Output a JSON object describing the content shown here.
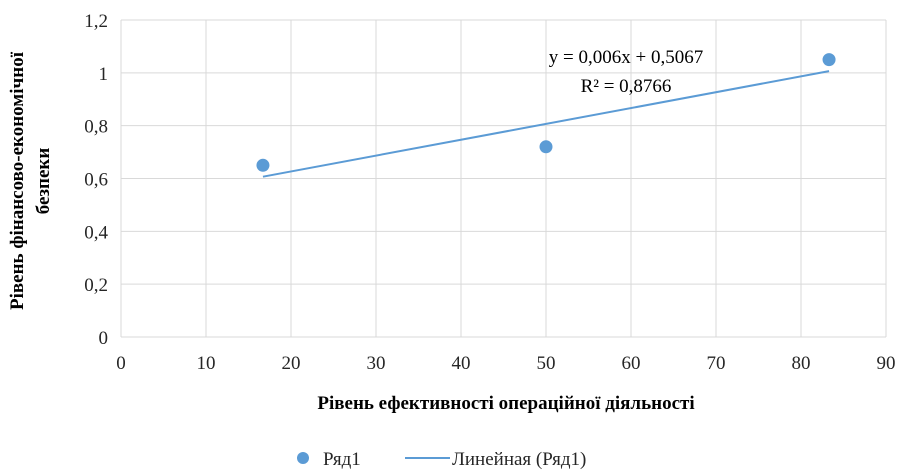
{
  "chart_data": {
    "type": "scatter",
    "xlabel": "Рівень ефективності операційної діяльності",
    "ylabel_line1": "Рівень фінансово-економічної",
    "ylabel_line2": "безпеки",
    "xlim": [
      0,
      90
    ],
    "ylim": [
      0,
      1.2
    ],
    "x_ticks": [
      0,
      10,
      20,
      30,
      40,
      50,
      60,
      70,
      80,
      90
    ],
    "y_ticks": [
      0,
      0.2,
      0.4,
      0.6,
      0.8,
      1,
      1.2
    ],
    "x_tick_labels": [
      "0",
      "10",
      "20",
      "30",
      "40",
      "50",
      "60",
      "70",
      "80",
      "90"
    ],
    "y_tick_labels": [
      "0",
      "0,2",
      "0,4",
      "0,6",
      "0,8",
      "1",
      "1,2"
    ],
    "grid": true,
    "series": [
      {
        "name": "Ряд1",
        "color": "#5B9BD5",
        "points": [
          {
            "x": 16.7,
            "y": 0.65
          },
          {
            "x": 50,
            "y": 0.72
          },
          {
            "x": 83.3,
            "y": 1.05
          }
        ]
      }
    ],
    "trendline": {
      "name": "Линейная (Ряд1)",
      "color": "#5B9BD5",
      "slope": 0.006,
      "intercept": 0.5067,
      "x_range": [
        16.7,
        83.3
      ],
      "equation_text": "y = 0,006x + 0,5067",
      "r2_text": "R² = 0,8766"
    },
    "legend_position": "bottom"
  }
}
